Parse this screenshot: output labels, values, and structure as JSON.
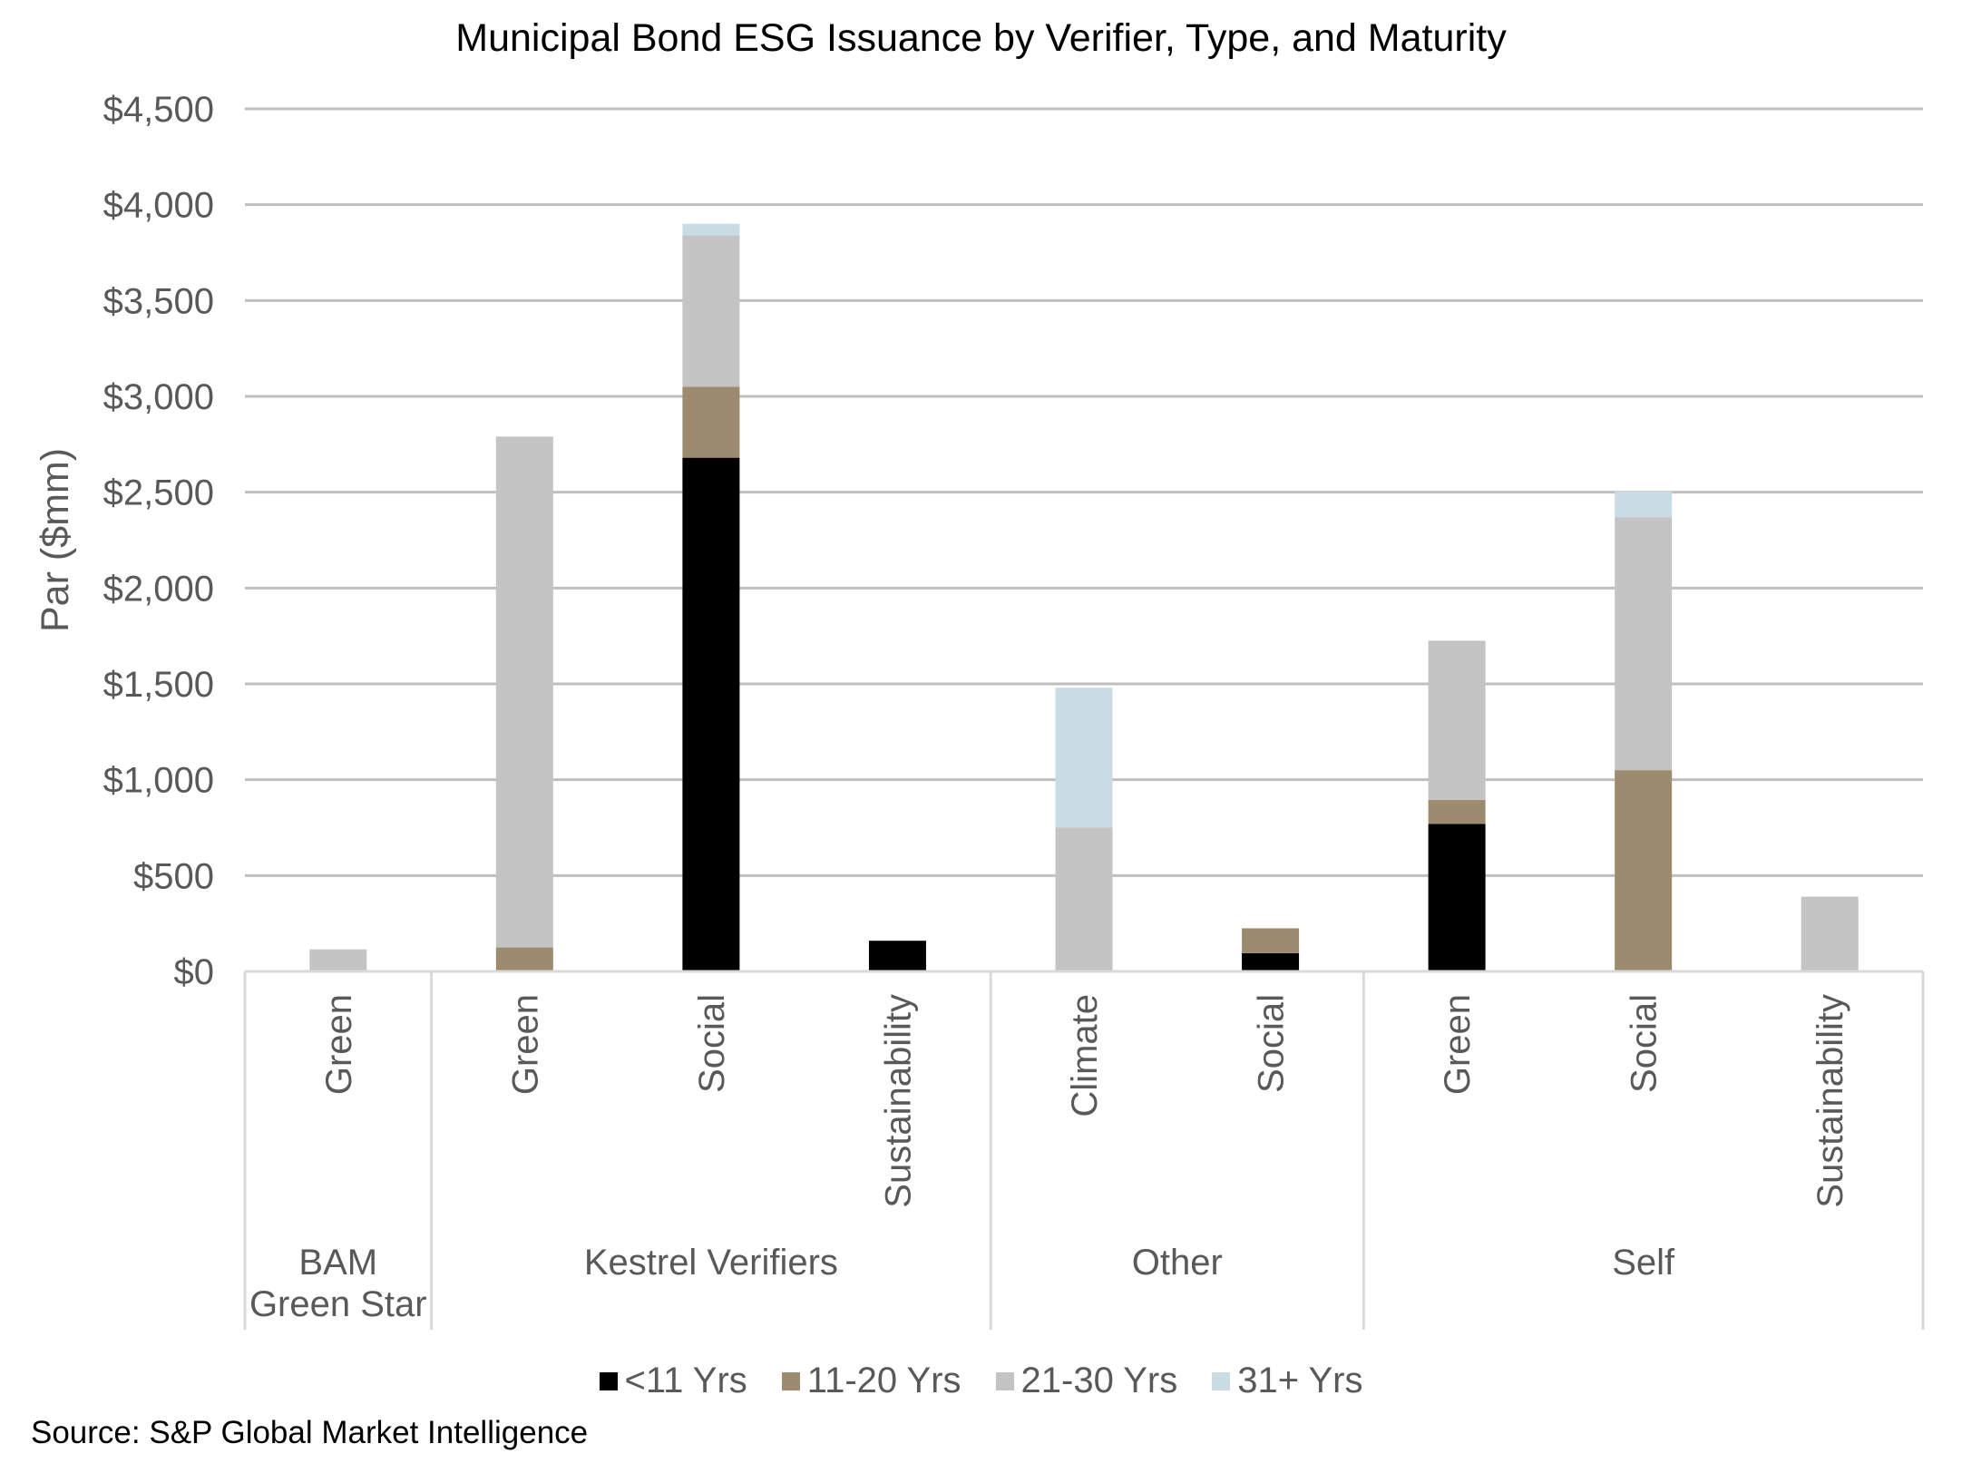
{
  "chart_data": {
    "type": "bar",
    "stacked": true,
    "title": "Municipal Bond ESG Issuance by Verifier, Type, and Maturity",
    "ylabel": "Par ($mm)",
    "ylim": [
      0,
      4500
    ],
    "yticks": [
      "$0",
      "$500",
      "$1,000",
      "$1,500",
      "$2,000",
      "$2,500",
      "$3,000",
      "$3,500",
      "$4,000",
      "$4,500"
    ],
    "grid": true,
    "legend_position": "bottom",
    "categories": [
      "Green",
      "Green",
      "Social",
      "Sustainability",
      "Climate",
      "Social",
      "Green",
      "Social",
      "Sustainability"
    ],
    "groups": [
      {
        "lines": [
          "BAM",
          "Green Star"
        ],
        "count": 1
      },
      {
        "lines": [
          "Kestrel Verifiers"
        ],
        "count": 3
      },
      {
        "lines": [
          "Other"
        ],
        "count": 2
      },
      {
        "lines": [
          "Self"
        ],
        "count": 3
      }
    ],
    "series": [
      {
        "name": "<11 Yrs",
        "color": "#000000",
        "values": [
          0,
          0,
          2680,
          160,
          0,
          95,
          770,
          0,
          0
        ]
      },
      {
        "name": "11-20 Yrs",
        "color": "#9c8b6f",
        "values": [
          0,
          125,
          370,
          0,
          0,
          130,
          125,
          1050,
          0
        ]
      },
      {
        "name": "21-30 Yrs",
        "color": "#c4c4c4",
        "values": [
          115,
          2665,
          790,
          0,
          750,
          0,
          830,
          1320,
          390
        ]
      },
      {
        "name": "31+ Yrs",
        "color": "#c9dce3",
        "values": [
          0,
          0,
          60,
          0,
          730,
          0,
          0,
          135,
          0
        ]
      }
    ]
  },
  "source": "Source: S&P Global Market Intelligence"
}
